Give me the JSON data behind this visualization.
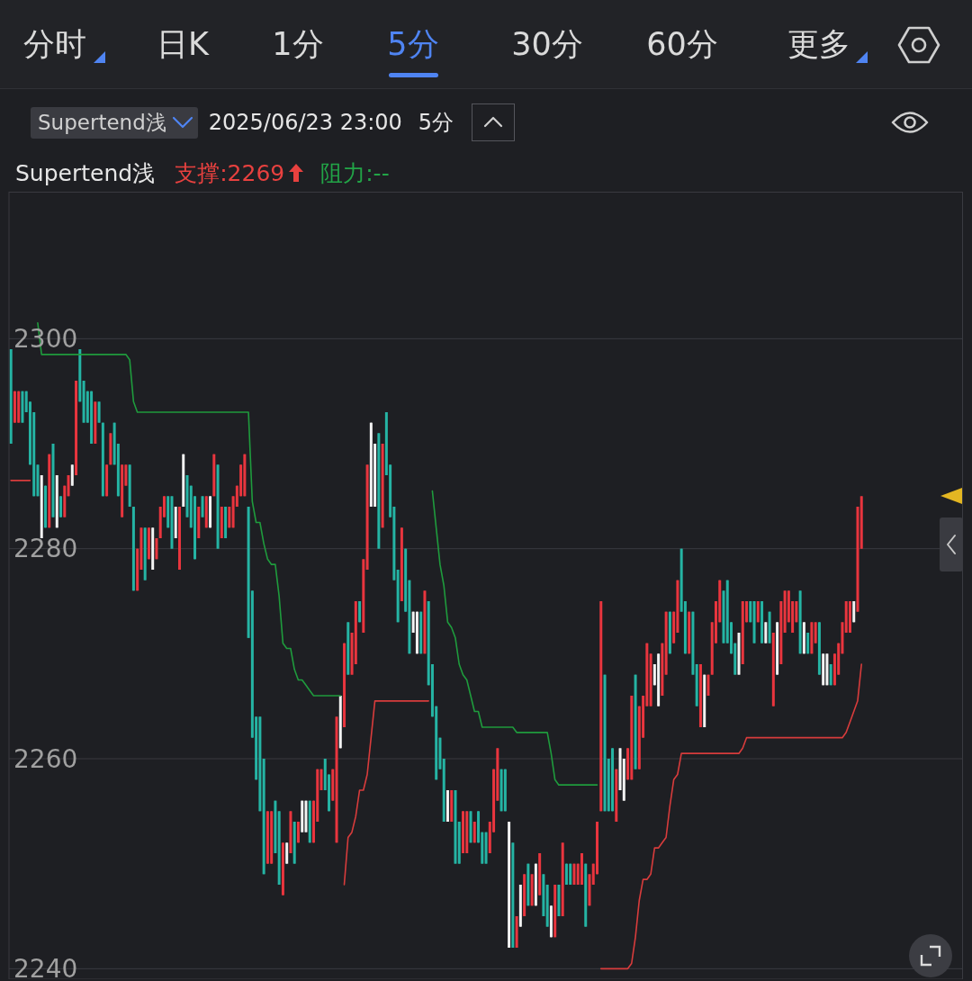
{
  "chart_data": {
    "type": "candlestick",
    "categories": [
      null,
      null,
      null,
      null,
      null,
      null,
      null,
      null,
      null,
      null,
      null,
      null,
      null,
      null,
      null,
      null,
      null,
      null,
      null,
      null,
      null,
      null,
      null,
      null,
      null,
      null,
      null,
      null,
      null,
      null,
      null,
      null,
      null,
      null,
      null,
      null,
      null,
      null,
      null,
      null,
      null,
      null,
      null,
      null,
      null,
      null,
      null,
      null,
      null,
      null,
      null,
      null,
      null,
      null,
      null,
      null,
      null,
      null,
      null,
      null,
      null,
      null,
      null,
      null,
      null,
      null,
      null,
      null,
      null,
      null,
      null,
      null,
      null,
      null,
      null,
      null,
      null,
      null,
      null,
      null,
      null,
      null,
      null,
      null,
      null,
      null,
      null,
      null,
      null,
      null,
      null,
      null,
      null,
      null,
      null,
      null,
      null,
      null,
      null,
      null,
      null,
      null,
      null,
      null,
      null,
      null,
      null,
      null,
      null,
      null,
      null,
      null,
      null,
      null,
      null,
      null,
      null,
      null,
      null,
      null,
      null,
      null,
      null,
      null,
      null,
      null,
      null,
      null,
      null,
      null,
      null,
      null,
      null,
      null,
      null,
      null,
      null,
      null,
      null,
      null,
      null,
      null,
      null,
      null,
      null,
      null,
      null,
      null,
      null,
      null,
      null,
      null,
      null,
      null,
      null,
      null,
      null,
      null,
      null,
      null,
      null,
      null,
      null,
      null,
      null,
      null,
      null,
      null,
      null,
      null,
      null,
      null,
      null,
      null,
      null,
      null,
      null,
      null,
      null,
      null,
      null,
      null,
      null,
      null,
      null,
      null,
      null,
      null,
      null,
      null,
      null,
      null,
      null,
      null,
      null,
      null,
      null,
      null,
      null,
      null,
      null,
      null,
      null,
      null,
      null,
      null,
      null,
      null,
      null,
      null,
      null,
      null,
      null,
      null,
      null,
      null,
      null,
      null,
      null,
      null,
      null,
      null,
      null,
      null,
      null,
      null,
      null,
      null,
      null,
      null,
      null,
      null,
      null,
      null,
      null,
      null,
      null,
      null,
      null,
      null,
      null,
      null,
      null,
      null,
      null,
      null,
      null,
      null,
      null
    ],
    "ohlc": [
      [
        2299,
        2299,
        2290,
        2290
      ],
      [
        2292,
        2295,
        2292,
        2295
      ],
      [
        2292,
        2295,
        2292,
        2295
      ],
      [
        2295,
        2295,
        2292,
        2292
      ],
      [
        2295,
        2295,
        2293,
        2293
      ],
      [
        2294,
        2294,
        2288,
        2288
      ],
      [
        2293,
        2293,
        2285,
        2285
      ],
      [
        2288,
        2288,
        2285,
        2285
      ],
      [
        2281,
        2287,
        2281,
        2287
      ],
      [
        2286,
        2286,
        2282,
        2282
      ],
      [
        2282,
        2289,
        2282,
        2289
      ],
      [
        2290,
        2290,
        2283,
        2283
      ],
      [
        2282,
        2287,
        2282,
        2287
      ],
      [
        2285,
        2285,
        2283,
        2283
      ],
      [
        2283,
        2286,
        2283,
        2286
      ],
      [
        2285,
        2287,
        2285,
        2287
      ],
      [
        2286,
        2288,
        2286,
        2288
      ],
      [
        2287,
        2296,
        2287,
        2296
      ],
      [
        2299,
        2299,
        2294,
        2294
      ],
      [
        2296,
        2296,
        2292,
        2292
      ],
      [
        2295,
        2295,
        2292,
        2292
      ],
      [
        2295,
        2295,
        2290,
        2290
      ],
      [
        2290,
        2294,
        2290,
        2294
      ],
      [
        2294,
        2294,
        2292,
        2292
      ],
      [
        2292,
        2292,
        2285,
        2285
      ],
      [
        2285,
        2288,
        2285,
        2288
      ],
      [
        2288,
        2291,
        2288,
        2291
      ],
      [
        2292,
        2292,
        2288,
        2288
      ],
      [
        2290,
        2290,
        2285,
        2285
      ],
      [
        2283,
        2288,
        2283,
        2288
      ],
      [
        2286,
        2288,
        2286,
        2288
      ],
      [
        2288,
        2288,
        2284,
        2284
      ],
      [
        2284,
        2284,
        2276,
        2276
      ],
      [
        2276,
        2280,
        2276,
        2280
      ],
      [
        2278,
        2282,
        2278,
        2282
      ],
      [
        2282,
        2282,
        2277,
        2277
      ],
      [
        2279,
        2282,
        2279,
        2282
      ],
      [
        2278,
        2282,
        2278,
        2282
      ],
      [
        2279,
        2281,
        2279,
        2281
      ],
      [
        2281,
        2284,
        2281,
        2284
      ],
      [
        2283,
        2285,
        2283,
        2285
      ],
      [
        2285,
        2285,
        2282,
        2282
      ],
      [
        2285,
        2285,
        2280,
        2280
      ],
      [
        2281,
        2284,
        2281,
        2284
      ],
      [
        2278,
        2284,
        2278,
        2284
      ],
      [
        2284,
        2289,
        2284,
        2289
      ],
      [
        2287,
        2287,
        2283,
        2283
      ],
      [
        2286,
        2286,
        2282,
        2282
      ],
      [
        2285,
        2285,
        2279,
        2279
      ],
      [
        2281,
        2284,
        2281,
        2284
      ],
      [
        2285,
        2285,
        2283,
        2283
      ],
      [
        2282,
        2285,
        2282,
        2285
      ],
      [
        2282,
        2285,
        2282,
        2285
      ],
      [
        2285,
        2289,
        2285,
        2289
      ],
      [
        2288,
        2288,
        2280,
        2280
      ],
      [
        2281,
        2284,
        2281,
        2284
      ],
      [
        2284,
        2284,
        2281,
        2281
      ],
      [
        2282,
        2284,
        2282,
        2284
      ],
      [
        2282,
        2285,
        2282,
        2285
      ],
      [
        2284,
        2286,
        2284,
        2286
      ],
      [
        2285,
        2288,
        2285,
        2288
      ],
      [
        2285,
        2289,
        2285,
        2289
      ],
      [
        2284,
        2284,
        2271.5,
        2271.5
      ],
      [
        2276,
        2276,
        2262,
        2262
      ],
      [
        2264,
        2264,
        2258,
        2258
      ],
      [
        2264,
        2264,
        2255,
        2255
      ],
      [
        2260,
        2260,
        2249,
        2249
      ],
      [
        2250,
        2255,
        2250,
        2255
      ],
      [
        2250,
        2255,
        2250,
        2255
      ],
      [
        2256,
        2256,
        2251,
        2251
      ],
      [
        2255,
        2255,
        2248,
        2248
      ],
      [
        2247,
        2252,
        2247,
        2252
      ],
      [
        2250,
        2252,
        2250,
        2252
      ],
      [
        2251,
        2255,
        2251,
        2255
      ],
      [
        2254,
        2254,
        2250,
        2250
      ],
      [
        2252,
        2254,
        2252,
        2254
      ],
      [
        2253,
        2256,
        2253,
        2256
      ],
      [
        2253,
        2256,
        2253,
        2256
      ],
      [
        2256,
        2256,
        2252,
        2252
      ],
      [
        2252,
        2256,
        2252,
        2256
      ],
      [
        2254,
        2259,
        2254,
        2259
      ],
      [
        2257,
        2259,
        2257,
        2259
      ],
      [
        2260,
        2260,
        2257,
        2257
      ],
      [
        2258.5,
        2258.5,
        2255,
        2255
      ],
      [
        2256,
        2259,
        2256,
        2259
      ],
      [
        2252,
        2264,
        2252,
        2264
      ],
      [
        2261,
        2266,
        2261,
        2266
      ],
      [
        2263,
        2271,
        2263,
        2271
      ],
      [
        2273,
        2273,
        2268,
        2268
      ],
      [
        2268,
        2272,
        2268,
        2272
      ],
      [
        2269,
        2275,
        2269,
        2275
      ],
      [
        2275,
        2275,
        2273,
        2273
      ],
      [
        2272,
        2279,
        2272,
        2279
      ],
      [
        2278,
        2288,
        2278,
        2288
      ],
      [
        2284,
        2292,
        2284,
        2292
      ],
      [
        2284,
        2290,
        2284,
        2290
      ],
      [
        2291,
        2291,
        2280,
        2280
      ],
      [
        2282,
        2290,
        2282,
        2290
      ],
      [
        2293,
        2293,
        2287,
        2287
      ],
      [
        2288,
        2288,
        2283,
        2283
      ],
      [
        2284,
        2284,
        2277,
        2277
      ],
      [
        2278,
        2278,
        2273,
        2273
      ],
      [
        2275,
        2282,
        2275,
        2282
      ],
      [
        2280,
        2280,
        2274,
        2274
      ],
      [
        2277,
        2277,
        2270,
        2270
      ],
      [
        2272,
        2274,
        2272,
        2274
      ],
      [
        2270,
        2274,
        2270,
        2274
      ],
      [
        2274,
        2274,
        2270,
        2270
      ],
      [
        2270,
        2276,
        2270,
        2276
      ],
      [
        2275,
        2275,
        2267,
        2267
      ],
      [
        2269,
        2269,
        2264,
        2264
      ],
      [
        2265,
        2265,
        2258,
        2258
      ],
      [
        2262,
        2262,
        2259,
        2259
      ],
      [
        2260,
        2260,
        2254,
        2254
      ],
      [
        2254,
        2257,
        2254,
        2257
      ],
      [
        2254,
        2257,
        2254,
        2257
      ],
      [
        2257,
        2257,
        2250,
        2250
      ],
      [
        2254,
        2254,
        2250,
        2250
      ],
      [
        2251,
        2255,
        2251,
        2255
      ],
      [
        2251,
        2255,
        2251,
        2255
      ],
      [
        2255,
        2255,
        2252,
        2252
      ],
      [
        2252,
        2254,
        2252,
        2254
      ],
      [
        2255,
        2255,
        2252,
        2252
      ],
      [
        2253,
        2253,
        2250,
        2250
      ],
      [
        2253,
        2253,
        2250,
        2250
      ],
      [
        2251,
        2254,
        2251,
        2254
      ],
      [
        2253,
        2259,
        2253,
        2259
      ],
      [
        2256,
        2261,
        2256,
        2261
      ],
      [
        2259,
        2259,
        2255,
        2255
      ],
      [
        2259,
        2259,
        2255,
        2255
      ],
      [
        2242,
        2254,
        2242,
        2254
      ],
      [
        2252,
        2252,
        2242,
        2242
      ],
      [
        2242,
        2245,
        2242,
        2245
      ],
      [
        2244,
        2248,
        2244,
        2248
      ],
      [
        2245,
        2249,
        2245,
        2249
      ],
      [
        2250,
        2250,
        2246,
        2246
      ],
      [
        2246,
        2249,
        2246,
        2249
      ],
      [
        2246,
        2250,
        2246,
        2250
      ],
      [
        2247,
        2251,
        2247,
        2251
      ],
      [
        2249,
        2249,
        2245,
        2245
      ],
      [
        2248,
        2248,
        2244,
        2244
      ],
      [
        2243,
        2246,
        2243,
        2246
      ],
      [
        2243,
        2248,
        2243,
        2248
      ],
      [
        2248,
        2248,
        2245,
        2245
      ],
      [
        2245,
        2252,
        2245,
        2252
      ],
      [
        2250,
        2250,
        2248,
        2248
      ],
      [
        2250,
        2250,
        2248,
        2248
      ],
      [
        2248,
        2250,
        2248,
        2250
      ],
      [
        2248,
        2250,
        2248,
        2250
      ],
      [
        2248,
        2251,
        2248,
        2251
      ],
      [
        2250,
        2250,
        2244,
        2244
      ],
      [
        2246,
        2249,
        2246,
        2249
      ],
      [
        2248,
        2250,
        2248,
        2250
      ],
      [
        2249,
        2254,
        2249,
        2254
      ],
      [
        2255,
        2275,
        2255,
        2275
      ],
      [
        2268,
        2268,
        2255,
        2255
      ],
      [
        2260,
        2260,
        2255,
        2255
      ],
      [
        2261,
        2261,
        2255,
        2255
      ],
      [
        2254,
        2259,
        2254,
        2259
      ],
      [
        2257,
        2261,
        2257,
        2261
      ],
      [
        2256,
        2260,
        2256,
        2260
      ],
      [
        2258,
        2261,
        2258,
        2261
      ],
      [
        2258,
        2266,
        2258,
        2266
      ],
      [
        2268,
        2268,
        2259,
        2259
      ],
      [
        2259,
        2265,
        2259,
        2265
      ],
      [
        2262,
        2266,
        2262,
        2266
      ],
      [
        2265,
        2271,
        2265,
        2271
      ],
      [
        2265,
        2270,
        2265,
        2270
      ],
      [
        2267,
        2269,
        2267,
        2269
      ],
      [
        2265,
        2270,
        2265,
        2270
      ],
      [
        2266,
        2271,
        2266,
        2271
      ],
      [
        2268,
        2274,
        2268,
        2274
      ],
      [
        2274,
        2274,
        2270,
        2270
      ],
      [
        2271,
        2274,
        2271,
        2274
      ],
      [
        2272,
        2277,
        2272,
        2277
      ],
      [
        2280,
        2280,
        2274,
        2274
      ],
      [
        2275,
        2275,
        2270,
        2270
      ],
      [
        2270,
        2274,
        2270,
        2274
      ],
      [
        2274,
        2274,
        2268,
        2268
      ],
      [
        2269,
        2269,
        2265,
        2265
      ],
      [
        2263,
        2269,
        2263,
        2269
      ],
      [
        2263,
        2268,
        2263,
        2268
      ],
      [
        2266,
        2268,
        2266,
        2268
      ],
      [
        2268,
        2273,
        2268,
        2273
      ],
      [
        2271,
        2275,
        2271,
        2275
      ],
      [
        2273,
        2277,
        2273,
        2277
      ],
      [
        2276,
        2276,
        2271,
        2271
      ],
      [
        2277,
        2277,
        2271,
        2271
      ],
      [
        2273,
        2273,
        2270,
        2270
      ],
      [
        2271,
        2271,
        2268,
        2268
      ],
      [
        2268,
        2272,
        2268,
        2272
      ],
      [
        2269,
        2275,
        2269,
        2275
      ],
      [
        2273,
        2275,
        2273,
        2275
      ],
      [
        2275,
        2275,
        2273,
        2273
      ],
      [
        2275,
        2275,
        2271,
        2271
      ],
      [
        2273,
        2275,
        2273,
        2275
      ],
      [
        2275,
        2275,
        2271,
        2271
      ],
      [
        2271,
        2273,
        2271,
        2273
      ],
      [
        2274,
        2274,
        2271,
        2271
      ],
      [
        2265,
        2272,
        2265,
        2272
      ],
      [
        2268,
        2273,
        2268,
        2273
      ],
      [
        2269,
        2275,
        2269,
        2275
      ],
      [
        2272,
        2276,
        2272,
        2276
      ],
      [
        2273,
        2276,
        2273,
        2276
      ],
      [
        2272,
        2275,
        2272,
        2275
      ],
      [
        2273,
        2275,
        2273,
        2275
      ],
      [
        2276,
        2276,
        2270,
        2270
      ],
      [
        2270,
        2273,
        2270,
        2273
      ],
      [
        2272,
        2272,
        2270,
        2270
      ],
      [
        2270,
        2273,
        2270,
        2273
      ],
      [
        2271,
        2273,
        2271,
        2273
      ],
      [
        2273,
        2273,
        2268,
        2268
      ],
      [
        2267,
        2270,
        2267,
        2270
      ],
      [
        2267,
        2270,
        2267,
        2270
      ],
      [
        2269,
        2269,
        2267,
        2267
      ],
      [
        2267,
        2270,
        2267,
        2270
      ],
      [
        2268,
        2271,
        2268,
        2271
      ],
      [
        2270,
        2273,
        2270,
        2273
      ],
      [
        2272,
        2275,
        2272,
        2275
      ],
      [
        2272,
        2275,
        2272,
        2275
      ],
      [
        2273,
        2275,
        2273,
        2275
      ],
      [
        2274,
        2284,
        2274,
        2284
      ],
      [
        2280,
        2285,
        2280,
        2285
      ],
      null,
      null,
      null,
      null,
      null,
      null,
      null,
      null,
      null,
      null,
      null,
      null,
      null,
      null,
      null,
      null,
      null,
      null,
      null,
      null,
      null,
      null,
      null,
      null,
      null,
      null
    ],
    "colors": [
      "#25b4a4",
      "#e9353e",
      "#e9353e",
      "#25b4a4",
      "#25b4a4",
      "#25b4a4",
      "#25b4a4",
      "#25b4a4",
      "#f2f2f2",
      "#25b4a4",
      "#e9353e",
      "#25b4a4",
      "#f2f2f2",
      "#25b4a4",
      "#e9353e",
      "#e9353e",
      "#f2f2f2",
      "#e9353e",
      "#25b4a4",
      "#25b4a4",
      "#25b4a4",
      "#25b4a4",
      "#e9353e",
      "#25b4a4",
      "#25b4a4",
      "#e9353e",
      "#e9353e",
      "#25b4a4",
      "#25b4a4",
      "#e9353e",
      "#e9353e",
      "#25b4a4",
      "#25b4a4",
      "#e9353e",
      "#e9353e",
      "#25b4a4",
      "#e9353e",
      "#f2f2f2",
      "#e9353e",
      "#e9353e",
      "#e9353e",
      "#25b4a4",
      "#25b4a4",
      "#f2f2f2",
      "#e9353e",
      "#f2f2f2",
      "#25b4a4",
      "#25b4a4",
      "#25b4a4",
      "#e9353e",
      "#25b4a4",
      "#e9353e",
      "#f2f2f2",
      "#e9353e",
      "#25b4a4",
      "#e9353e",
      "#25b4a4",
      "#e9353e",
      "#e9353e",
      "#e9353e",
      "#e9353e",
      "#e9353e",
      "#25b4a4",
      "#25b4a4",
      "#25b4a4",
      "#25b4a4",
      "#25b4a4",
      "#e9353e",
      "#e9353e",
      "#25b4a4",
      "#25b4a4",
      "#e9353e",
      "#f2f2f2",
      "#e9353e",
      "#25b4a4",
      "#e9353e",
      "#f2f2f2",
      "#f2f2f2",
      "#25b4a4",
      "#e9353e",
      "#e9353e",
      "#e9353e",
      "#25b4a4",
      "#25b4a4",
      "#e9353e",
      "#e9353e",
      "#f2f2f2",
      "#e9353e",
      "#25b4a4",
      "#e9353e",
      "#e9353e",
      "#25b4a4",
      "#e9353e",
      "#e9353e",
      "#f2f2f2",
      "#f2f2f2",
      "#25b4a4",
      "#e9353e",
      "#25b4a4",
      "#25b4a4",
      "#25b4a4",
      "#25b4a4",
      "#e9353e",
      "#25b4a4",
      "#25b4a4",
      "#f2f2f2",
      "#f2f2f2",
      "#25b4a4",
      "#e9353e",
      "#25b4a4",
      "#25b4a4",
      "#25b4a4",
      "#25b4a4",
      "#25b4a4",
      "#f2f2f2",
      "#e9353e",
      "#25b4a4",
      "#25b4a4",
      "#e9353e",
      "#e9353e",
      "#25b4a4",
      "#e9353e",
      "#25b4a4",
      "#25b4a4",
      "#25b4a4",
      "#e9353e",
      "#e9353e",
      "#e9353e",
      "#25b4a4",
      "#25b4a4",
      "#f2f2f2",
      "#25b4a4",
      "#e9353e",
      "#f2f2f2",
      "#e9353e",
      "#25b4a4",
      "#e9353e",
      "#f2f2f2",
      "#e9353e",
      "#25b4a4",
      "#25b4a4",
      "#f2f2f2",
      "#e9353e",
      "#25b4a4",
      "#e9353e",
      "#25b4a4",
      "#25b4a4",
      "#e9353e",
      "#e9353e",
      "#e9353e",
      "#25b4a4",
      "#e9353e",
      "#e9353e",
      "#e9353e",
      "#e9353e",
      "#25b4a4",
      "#25b4a4",
      "#25b4a4",
      "#e9353e",
      "#f2f2f2",
      "#f2f2f2",
      "#e9353e",
      "#e9353e",
      "#25b4a4",
      "#e9353e",
      "#e9353e",
      "#e9353e",
      "#e9353e",
      "#f2f2f2",
      "#f2f2f2",
      "#e9353e",
      "#e9353e",
      "#25b4a4",
      "#e9353e",
      "#e9353e",
      "#25b4a4",
      "#25b4a4",
      "#e9353e",
      "#25b4a4",
      "#25b4a4",
      "#e9353e",
      "#f2f2f2",
      "#e9353e",
      "#e9353e",
      "#e9353e",
      "#e9353e",
      "#25b4a4",
      "#25b4a4",
      "#25b4a4",
      "#25b4a4",
      "#f2f2f2",
      "#e9353e",
      "#e9353e",
      "#25b4a4",
      "#25b4a4",
      "#e9353e",
      "#25b4a4",
      "#f2f2f2",
      "#25b4a4",
      "#e9353e",
      "#f2f2f2",
      "#e9353e",
      "#e9353e",
      "#e9353e",
      "#e9353e",
      "#e9353e",
      "#25b4a4",
      "#f2f2f2",
      "#25b4a4",
      "#e9353e",
      "#e9353e",
      "#25b4a4",
      "#f2f2f2",
      "#f2f2f2",
      "#25b4a4",
      "#e9353e",
      "#e9353e",
      "#e9353e",
      "#e9353e",
      "#e9353e",
      "#f2f2f2",
      "#e9353e",
      "#e9353e",
      null,
      null,
      null,
      null,
      null,
      null,
      null,
      null,
      null,
      null,
      null,
      null,
      null,
      null,
      null,
      null,
      null,
      null,
      null,
      null,
      null,
      null,
      null,
      null,
      null,
      null
    ],
    "series": [
      {
        "type": "line",
        "color": "#1f9b3d",
        "values": [
          null,
          null,
          null,
          null,
          null,
          null,
          null,
          2301.5,
          2298.5,
          2298.5,
          2298.5,
          2298.5,
          2298.5,
          2298.5,
          2298.5,
          2298.5,
          2298.5,
          2298.5,
          2298.5,
          2298.5,
          2298.5,
          2298.5,
          2298.5,
          2298.5,
          2298.5,
          2298.5,
          2298.5,
          2298.5,
          2298.5,
          2298.5,
          2298.5,
          2298,
          2294,
          2293,
          2293,
          2293,
          2293,
          2293,
          2293,
          2293,
          2293,
          2293,
          2293,
          2293,
          2293,
          2293,
          2293,
          2293,
          2293,
          2293,
          2293,
          2293,
          2293,
          2293,
          2293,
          2293,
          2293,
          2293,
          2293,
          2293,
          2293,
          2293,
          2293,
          2284.5,
          2282.5,
          2282.5,
          2280.5,
          2279,
          2278.5,
          2278.5,
          2275.5,
          2271,
          2270.5,
          2270.5,
          2268.5,
          2267.5,
          2267.5,
          2267,
          2266.5,
          2266,
          2266,
          2266,
          2266,
          2266,
          2266,
          2266,
          2266,
          null,
          null,
          null,
          null,
          null,
          null,
          null,
          null,
          null,
          null,
          null,
          null,
          null,
          null,
          null,
          null,
          null,
          null,
          null,
          null,
          null,
          null,
          null,
          2285.5,
          2282,
          2278.5,
          2276.5,
          2273,
          2272.5,
          2271.5,
          2269,
          2268,
          2267.5,
          2266,
          2264.5,
          2264.5,
          2263,
          2263,
          2263,
          2263,
          2263,
          2263,
          2263,
          2263,
          2263,
          2262.5,
          2262.5,
          2262.5,
          2262.5,
          2262.5,
          2262.5,
          2262.5,
          2262.5,
          2262.5,
          2260.5,
          2258,
          2257.5,
          2257.5,
          2257.5,
          2257.5,
          2257.5,
          2257.5,
          2257.5,
          2257.5,
          2257.5,
          2257.5,
          2257.5,
          null,
          null,
          null,
          null,
          null,
          null,
          null,
          null,
          null,
          null,
          null,
          null,
          null,
          null,
          null,
          null,
          null,
          null,
          null,
          null,
          null,
          null,
          null,
          null,
          null,
          null,
          null,
          null,
          null,
          null,
          null,
          null,
          null,
          null,
          null,
          null,
          null,
          null,
          null,
          null,
          null,
          null,
          null,
          null,
          null,
          null,
          null,
          null,
          null,
          null,
          null,
          null,
          null,
          null,
          null,
          null,
          null,
          null,
          null,
          null,
          null,
          null,
          null,
          null,
          null,
          null,
          null,
          null,
          null,
          null,
          null,
          null,
          null,
          null,
          null,
          null,
          null,
          null,
          null,
          null,
          null,
          null,
          null,
          null,
          null,
          null,
          null,
          null,
          null,
          null,
          null,
          null,
          null,
          null,
          null
        ]
      },
      {
        "type": "line",
        "color": "#d83c3c",
        "values": [
          2286.5,
          2286.5,
          2286.5,
          2286.5,
          2286.5,
          2286.5,
          null,
          null,
          null,
          null,
          null,
          null,
          null,
          null,
          null,
          null,
          null,
          null,
          null,
          null,
          null,
          null,
          null,
          null,
          null,
          null,
          null,
          null,
          null,
          null,
          null,
          null,
          null,
          null,
          null,
          null,
          null,
          null,
          null,
          null,
          null,
          null,
          null,
          null,
          null,
          null,
          null,
          null,
          null,
          null,
          null,
          null,
          null,
          null,
          null,
          null,
          null,
          null,
          null,
          null,
          null,
          null,
          null,
          null,
          null,
          null,
          null,
          null,
          null,
          null,
          null,
          null,
          null,
          null,
          null,
          null,
          null,
          null,
          null,
          null,
          null,
          null,
          null,
          null,
          null,
          null,
          null,
          2248,
          2252.5,
          2253,
          2254.5,
          2257,
          2257,
          2258.5,
          2262,
          2265.5,
          2265.5,
          2265.5,
          2265.5,
          2265.5,
          2265.5,
          2265.5,
          2265.5,
          2265.5,
          2265.5,
          2265.5,
          2265.5,
          2265.5,
          2265.5,
          2265.5,
          null,
          null,
          null,
          null,
          null,
          null,
          null,
          null,
          null,
          null,
          null,
          null,
          null,
          null,
          null,
          null,
          null,
          null,
          null,
          null,
          null,
          null,
          null,
          null,
          null,
          null,
          null,
          null,
          null,
          null,
          null,
          null,
          null,
          null,
          null,
          null,
          null,
          null,
          null,
          null,
          null,
          null,
          null,
          null,
          2240,
          2240,
          2240,
          2240,
          2240,
          2240,
          2240,
          2240,
          2240.5,
          2243,
          2246.5,
          2248.5,
          2248.5,
          2249,
          2251.5,
          2251.5,
          2252,
          2252.5,
          2255.5,
          2258,
          2258.5,
          2260.5,
          2260.5,
          2260.5,
          2260.5,
          2260.5,
          2260.5,
          2260.5,
          2260.5,
          2260.5,
          2260.5,
          2260.5,
          2260.5,
          2260.5,
          2260.5,
          2260.5,
          2260.5,
          2261,
          2262,
          2262,
          2262,
          2262,
          2262,
          2262,
          2262,
          2262,
          2262,
          2262,
          2262,
          2262,
          2262,
          2262,
          2262,
          2262,
          2262,
          2262,
          2262,
          2262,
          2262,
          2262,
          2262,
          2262,
          2262,
          2262,
          2262.5,
          2263.5,
          2264.5,
          2265.5,
          2269,
          null,
          null,
          null,
          null,
          null,
          null,
          null,
          null,
          null,
          null,
          null,
          null,
          null,
          null,
          null,
          null,
          null,
          null,
          null,
          null,
          null,
          null,
          null,
          null,
          null,
          null
        ]
      }
    ],
    "ylim": [
      2239,
      2314
    ],
    "yticks": [
      2240,
      2260,
      2280,
      2300
    ],
    "grid": "y",
    "tick_labels": "y",
    "annotations": [
      "分时",
      "日K",
      "1分",
      "5分",
      "30分",
      "60分",
      "更多",
      "Supertend浅",
      "2025/06/23 23:00",
      "5分",
      "Supertend浅",
      "支撑:2269",
      "阻力:--"
    ]
  }
}
